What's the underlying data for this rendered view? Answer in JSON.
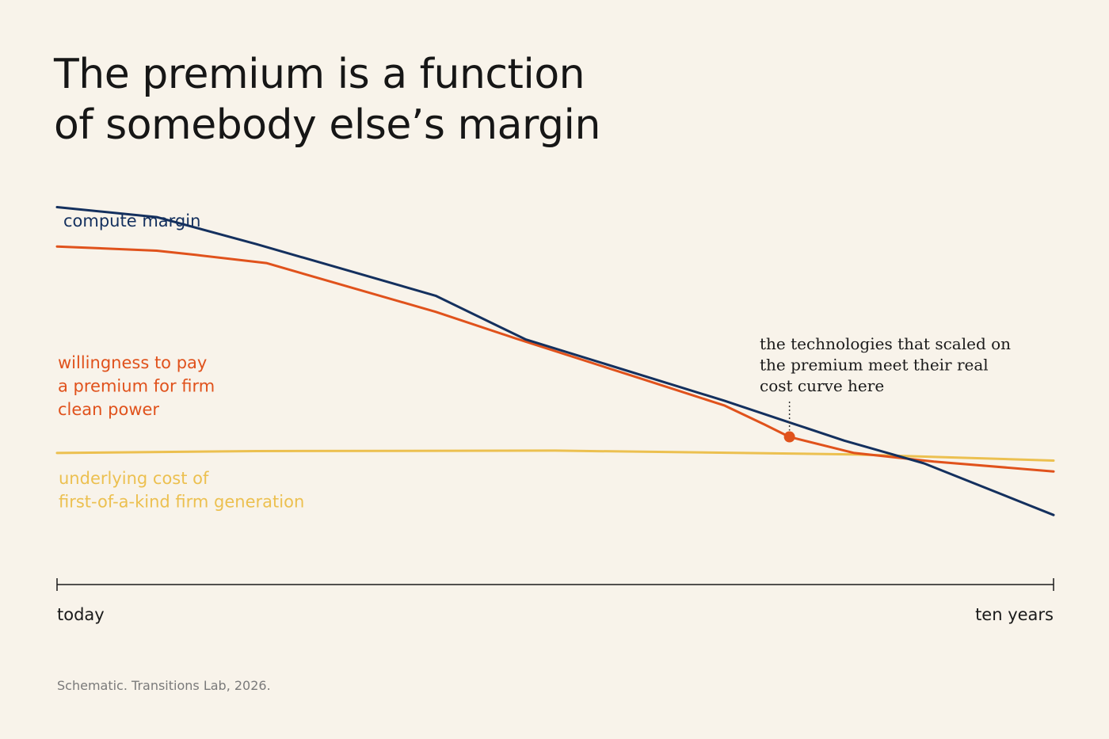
{
  "title": [
    "The premium is a function",
    "of somebody else’s margin"
  ],
  "source": "Schematic. Transitions Lab, 2026.",
  "colors": {
    "background": "#f8f3ea",
    "compute_margin": "#14305e",
    "willingness": "#e0521c",
    "cost": "#ecc050",
    "axis": "#1a1a1a"
  },
  "chart_data": {
    "type": "line",
    "title": "The premium is a function of somebody else’s margin",
    "xlabel": "",
    "ylabel": "",
    "x_tick_labels": [
      "today",
      "ten years"
    ],
    "xlim": [
      0,
      10
    ],
    "ylim": [
      0,
      10
    ],
    "grid": false,
    "series": [
      {
        "name": "compute margin",
        "label_lines": [
          "compute margin"
        ],
        "color": "#14305e",
        "x": [
          0,
          1,
          2,
          3.8,
          4.7,
          6.7,
          7.4,
          7.9,
          8.7,
          10
        ],
        "y": [
          9.64,
          9.43,
          8.86,
          7.77,
          6.85,
          5.55,
          5.06,
          4.71,
          4.23,
          3.14
        ]
      },
      {
        "name": "willingness to pay a premium for firm clean power",
        "label_lines": [
          "willingness to pay",
          "a premium for firm",
          "clean power"
        ],
        "color": "#e0521c",
        "x": [
          0,
          1,
          1.4,
          2.1,
          3.8,
          4.6,
          5.8,
          6.7,
          7.1,
          7.35,
          8.0,
          8.8,
          10
        ],
        "y": [
          8.81,
          8.72,
          8.63,
          8.46,
          7.43,
          6.87,
          6.06,
          5.45,
          5.05,
          4.79,
          4.45,
          4.27,
          4.06
        ]
      },
      {
        "name": "underlying cost of first-of-a-kind firm generation",
        "label_lines": [
          "underlying cost of",
          "first-of-a-kind firm generation"
        ],
        "color": "#ecc050",
        "x": [
          0,
          2,
          5,
          8,
          10
        ],
        "y": [
          4.45,
          4.49,
          4.5,
          4.42,
          4.29
        ]
      }
    ],
    "annotation": {
      "text_lines": [
        "the technologies that scaled on",
        "the premium meet their real",
        "cost curve here"
      ],
      "point": {
        "series": "willingness to pay a premium for firm clean power",
        "x": 7.35,
        "y": 4.79
      }
    }
  }
}
